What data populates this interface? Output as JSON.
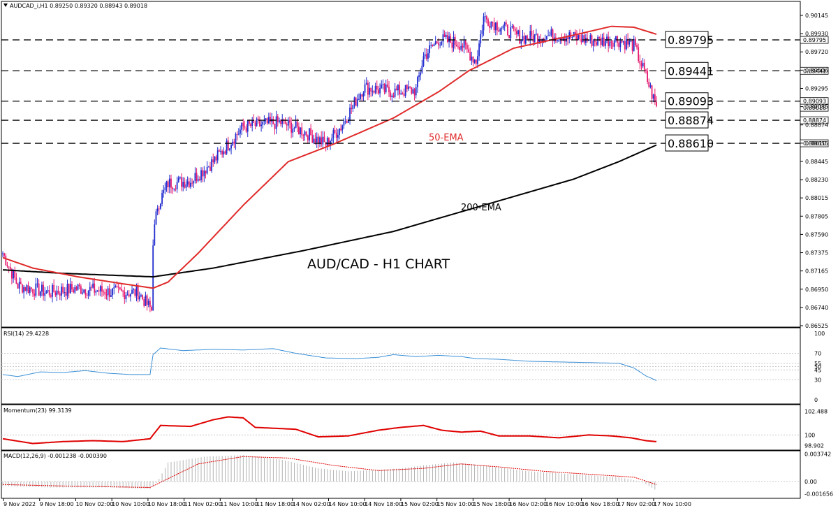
{
  "window": {
    "symbol_line": "AUDCAD_i,H1  0.89250 0.89320 0.88943 0.89018",
    "dropdown_icon": "triangle-down-icon"
  },
  "annotations": {
    "main_title": "AUD/CAD - H1 CHART",
    "ema50_label": "50-EMA",
    "ema200_label": "200-EMA"
  },
  "colors": {
    "bull": "#1f2ccf",
    "bear": "#e8196f",
    "ema50": "#e02a2a",
    "ema200": "#000000",
    "rsi": "#3a8fd6",
    "momentum": "#e00000",
    "macd_signal": "#e00000",
    "macd_hist": "#a0a0a0",
    "grid": "#c8c8c8"
  },
  "chart_data": [
    {
      "type": "candlestick",
      "panel": "price",
      "ylim": [
        0.8652,
        0.9014
      ],
      "y_ticks": [
        "0.90145",
        "0.89930",
        "0.89720",
        "0.89506",
        "0.89295",
        "0.89085",
        "0.88874",
        "0.88655",
        "0.88445",
        "0.88230",
        "0.88015",
        "0.87805",
        "0.87590",
        "0.87375",
        "0.87165",
        "0.86950",
        "0.86740",
        "0.86525"
      ],
      "price_flags": [
        "0.89795",
        "0.89441",
        "0.89093",
        "0.89018",
        "0.88874",
        "0.88610"
      ],
      "levels": [
        {
          "label": "0.89795",
          "value": 0.89795
        },
        {
          "label": "0.89441",
          "value": 0.89441
        },
        {
          "label": "0.89093",
          "value": 0.89093
        },
        {
          "label": "0.88874",
          "value": 0.88874
        },
        {
          "label": "0.88610",
          "value": 0.8861
        }
      ],
      "ema50_anchors": [
        [
          0,
          0.873
        ],
        [
          20,
          0.8718
        ],
        [
          50,
          0.8708
        ],
        [
          80,
          0.87
        ],
        [
          100,
          0.8695
        ],
        [
          110,
          0.8702
        ],
        [
          130,
          0.8735
        ],
        [
          160,
          0.879
        ],
        [
          190,
          0.884
        ],
        [
          220,
          0.886
        ],
        [
          260,
          0.889
        ],
        [
          290,
          0.892
        ],
        [
          310,
          0.8944
        ],
        [
          340,
          0.897
        ],
        [
          380,
          0.8985
        ],
        [
          405,
          0.8995
        ],
        [
          420,
          0.8994
        ],
        [
          435,
          0.8986
        ]
      ],
      "ema200_anchors": [
        [
          0,
          0.8716
        ],
        [
          40,
          0.8712
        ],
        [
          100,
          0.8708
        ],
        [
          140,
          0.8718
        ],
        [
          200,
          0.8738
        ],
        [
          260,
          0.876
        ],
        [
          320,
          0.879
        ],
        [
          380,
          0.882
        ],
        [
          410,
          0.884
        ],
        [
          435,
          0.8859
        ]
      ],
      "close_anchors": [
        [
          0,
          0.8735
        ],
        [
          10,
          0.8698
        ],
        [
          30,
          0.869
        ],
        [
          50,
          0.8695
        ],
        [
          75,
          0.869
        ],
        [
          90,
          0.869
        ],
        [
          99,
          0.867
        ],
        [
          100,
          0.875
        ],
        [
          103,
          0.879
        ],
        [
          110,
          0.8815
        ],
        [
          125,
          0.8818
        ],
        [
          140,
          0.884
        ],
        [
          160,
          0.888
        ],
        [
          185,
          0.8885
        ],
        [
          200,
          0.8875
        ],
        [
          215,
          0.886
        ],
        [
          225,
          0.888
        ],
        [
          240,
          0.8925
        ],
        [
          260,
          0.892
        ],
        [
          275,
          0.8922
        ],
        [
          280,
          0.896
        ],
        [
          290,
          0.898
        ],
        [
          305,
          0.8975
        ],
        [
          315,
          0.8955
        ],
        [
          320,
          0.9005
        ],
        [
          345,
          0.8982
        ],
        [
          370,
          0.8985
        ],
        [
          395,
          0.8978
        ],
        [
          408,
          0.898
        ],
        [
          420,
          0.8973
        ],
        [
          428,
          0.8938
        ],
        [
          435,
          0.8902
        ]
      ]
    },
    {
      "type": "line",
      "panel": "rsi",
      "title": "RSI(14) 29.4228",
      "ylim": [
        0,
        100
      ],
      "y_ticks": [
        "100",
        "70",
        "55",
        "50",
        "45",
        "30",
        "0"
      ],
      "anchors": [
        [
          0,
          38
        ],
        [
          10,
          35
        ],
        [
          25,
          42
        ],
        [
          40,
          41
        ],
        [
          55,
          44
        ],
        [
          70,
          40
        ],
        [
          85,
          38
        ],
        [
          98,
          38
        ],
        [
          100,
          68
        ],
        [
          105,
          78
        ],
        [
          120,
          74
        ],
        [
          140,
          76
        ],
        [
          160,
          75
        ],
        [
          180,
          77
        ],
        [
          195,
          70
        ],
        [
          215,
          63
        ],
        [
          235,
          62
        ],
        [
          250,
          64
        ],
        [
          260,
          68
        ],
        [
          275,
          65
        ],
        [
          290,
          67
        ],
        [
          305,
          65
        ],
        [
          315,
          62
        ],
        [
          330,
          61
        ],
        [
          350,
          58
        ],
        [
          370,
          57
        ],
        [
          390,
          56
        ],
        [
          410,
          55
        ],
        [
          420,
          48
        ],
        [
          428,
          36
        ],
        [
          435,
          29
        ]
      ]
    },
    {
      "type": "line",
      "panel": "momentum",
      "title": "Momentum(23) 99.3139",
      "ylim": [
        98.7,
        102.6
      ],
      "y_ticks": [
        "102.488",
        "100",
        "98.902"
      ],
      "anchors": [
        [
          0,
          99.6
        ],
        [
          20,
          99.1
        ],
        [
          40,
          99.3
        ],
        [
          60,
          99.4
        ],
        [
          80,
          99.3
        ],
        [
          98,
          99.6
        ],
        [
          105,
          101.0
        ],
        [
          125,
          100.9
        ],
        [
          140,
          101.6
        ],
        [
          150,
          101.9
        ],
        [
          160,
          101.8
        ],
        [
          168,
          100.8
        ],
        [
          195,
          100.6
        ],
        [
          210,
          99.8
        ],
        [
          230,
          99.9
        ],
        [
          250,
          100.5
        ],
        [
          265,
          100.8
        ],
        [
          280,
          101.0
        ],
        [
          292,
          100.5
        ],
        [
          305,
          100.3
        ],
        [
          318,
          100.4
        ],
        [
          330,
          99.9
        ],
        [
          350,
          99.9
        ],
        [
          370,
          99.7
        ],
        [
          390,
          100.0
        ],
        [
          405,
          99.9
        ],
        [
          418,
          99.7
        ],
        [
          428,
          99.4
        ],
        [
          435,
          99.3
        ]
      ]
    },
    {
      "type": "bar",
      "panel": "macd",
      "title": "MACD(12,26,9) -0.001238 -0.000390",
      "ylim": [
        -0.0018,
        0.0039
      ],
      "y_ticks": [
        "0.003742",
        "0.00",
        "-0.001656"
      ],
      "hist_anchors": [
        [
          0,
          -0.0006
        ],
        [
          30,
          -0.0008
        ],
        [
          70,
          -0.0008
        ],
        [
          98,
          -0.001
        ],
        [
          103,
          0.0
        ],
        [
          110,
          0.0026
        ],
        [
          135,
          0.0034
        ],
        [
          160,
          0.0036
        ],
        [
          185,
          0.003
        ],
        [
          210,
          0.0018
        ],
        [
          230,
          0.0014
        ],
        [
          250,
          0.0016
        ],
        [
          265,
          0.0018
        ],
        [
          280,
          0.0022
        ],
        [
          300,
          0.0026
        ],
        [
          320,
          0.0022
        ],
        [
          350,
          0.0014
        ],
        [
          380,
          0.001
        ],
        [
          410,
          0.0006
        ],
        [
          425,
          0.0
        ],
        [
          435,
          -0.0012
        ]
      ],
      "signal_anchors": [
        [
          0,
          -0.0004
        ],
        [
          40,
          -0.0006
        ],
        [
          98,
          -0.0008
        ],
        [
          110,
          0.0004
        ],
        [
          130,
          0.0024
        ],
        [
          160,
          0.0034
        ],
        [
          190,
          0.0032
        ],
        [
          220,
          0.0022
        ],
        [
          250,
          0.0015
        ],
        [
          280,
          0.0018
        ],
        [
          305,
          0.0024
        ],
        [
          330,
          0.002
        ],
        [
          360,
          0.0014
        ],
        [
          390,
          0.001
        ],
        [
          420,
          0.0006
        ],
        [
          435,
          -0.0004
        ]
      ]
    }
  ],
  "x_axis": {
    "labels": [
      "9 Nov 2022",
      "9 Nov 18:00",
      "10 Nov 02:00",
      "10 Nov 10:00",
      "10 Nov 18:00",
      "11 Nov 02:00",
      "11 Nov 10:00",
      "11 Nov 18:00",
      "14 Nov 02:00",
      "14 Nov 10:00",
      "14 Nov 18:00",
      "15 Nov 02:00",
      "15 Nov 10:00",
      "15 Nov 18:00",
      "16 Nov 02:00",
      "16 Nov 10:00",
      "16 Nov 18:00",
      "17 Nov 02:00",
      "17 Nov 10:00"
    ]
  }
}
